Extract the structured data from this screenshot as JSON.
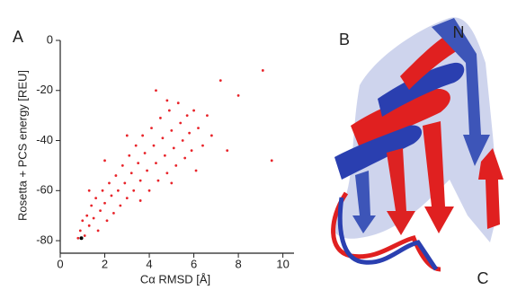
{
  "chart_data": {
    "type": "scatter",
    "panel_label": "A",
    "xlabel": "Cα RMSD [Å]",
    "ylabel": "Rosetta + PCS energy [REU]",
    "xlim": [
      0,
      10.5
    ],
    "ylim": [
      -85,
      0
    ],
    "xticks": [
      0,
      2,
      4,
      6,
      8,
      10
    ],
    "yticks": [
      0,
      -20,
      -40,
      -60,
      -80
    ],
    "series": [
      {
        "color": "#e8242a",
        "x": [
          0.8,
          0.9,
          1.0,
          1.1,
          1.2,
          1.3,
          1.4,
          1.5,
          1.6,
          1.7,
          1.8,
          1.9,
          2.0,
          2.1,
          2.2,
          2.3,
          2.4,
          2.5,
          2.6,
          2.7,
          2.8,
          2.9,
          3.0,
          3.1,
          3.2,
          3.3,
          3.4,
          3.5,
          3.6,
          3.7,
          3.8,
          3.9,
          4.0,
          4.1,
          4.2,
          4.3,
          4.4,
          4.5,
          4.6,
          4.7,
          4.8,
          4.9,
          5.0,
          5.1,
          5.2,
          5.3,
          5.4,
          5.5,
          5.6,
          5.7,
          5.8,
          5.9,
          6.0,
          6.2,
          6.4,
          6.6,
          6.8,
          7.2,
          8.0,
          9.1,
          9.5,
          7.5,
          4.3,
          3.0,
          2.0,
          6.1,
          5.0,
          1.3,
          3.6,
          4.8
        ],
        "values": [
          -79,
          -76,
          -72,
          -78,
          -70,
          -74,
          -66,
          -71,
          -63,
          -76,
          -68,
          -60,
          -65,
          -72,
          -57,
          -62,
          -69,
          -54,
          -60,
          -66,
          -50,
          -57,
          -63,
          -46,
          -53,
          -60,
          -42,
          -49,
          -56,
          -38,
          -45,
          -52,
          -60,
          -35,
          -42,
          -49,
          -56,
          -31,
          -39,
          -46,
          -53,
          -28,
          -36,
          -43,
          -50,
          -25,
          -33,
          -40,
          -47,
          -30,
          -37,
          -44,
          -28,
          -35,
          -42,
          -30,
          -38,
          -16,
          -22,
          -12,
          -48,
          -44,
          -20,
          -38,
          -48,
          -52,
          -57,
          -60,
          -64,
          -24
        ]
      },
      {
        "color": "#000000",
        "x": [
          0.95
        ],
        "values": [
          -79
        ]
      }
    ]
  },
  "structure": {
    "panel_label": "B",
    "n_label": "N",
    "c_label": "C"
  }
}
